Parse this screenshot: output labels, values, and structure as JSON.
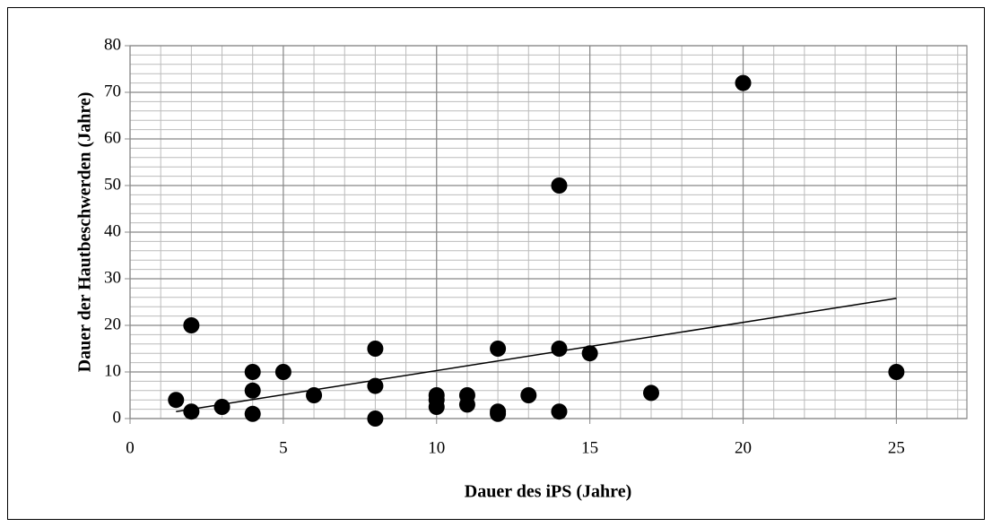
{
  "chart_data": {
    "type": "scatter",
    "x_label": "Dauer des iPS (Jahre)",
    "y_label": "Dauer der Hautbeschwerden (Jahre)",
    "series": [
      {
        "color": "#000000",
        "x": [
          1.5,
          2,
          2,
          3,
          4,
          4,
          4,
          5,
          6,
          8,
          8,
          8,
          10,
          10,
          10,
          11,
          11,
          12,
          12,
          12,
          13,
          14,
          14,
          14,
          15,
          17,
          20,
          25
        ],
        "values": [
          4,
          20,
          1.5,
          2.5,
          10,
          6,
          1,
          10,
          5,
          15,
          7,
          0,
          5,
          4,
          2.5,
          5,
          3,
          15,
          1.5,
          1,
          5,
          50,
          15,
          1.5,
          14,
          5.5,
          72,
          10
        ]
      }
    ],
    "trendline": {
      "color": "#000000",
      "x": [
        1.5,
        25
      ],
      "values": [
        1.5,
        25.8
      ]
    },
    "xlim": [
      0,
      27.3
    ],
    "xticks": [
      0,
      5,
      10,
      15,
      20,
      25
    ],
    "ylim": [
      0,
      80
    ],
    "yticks": [
      0,
      10,
      20,
      30,
      40,
      50,
      60,
      70,
      80
    ],
    "grid": true
  }
}
